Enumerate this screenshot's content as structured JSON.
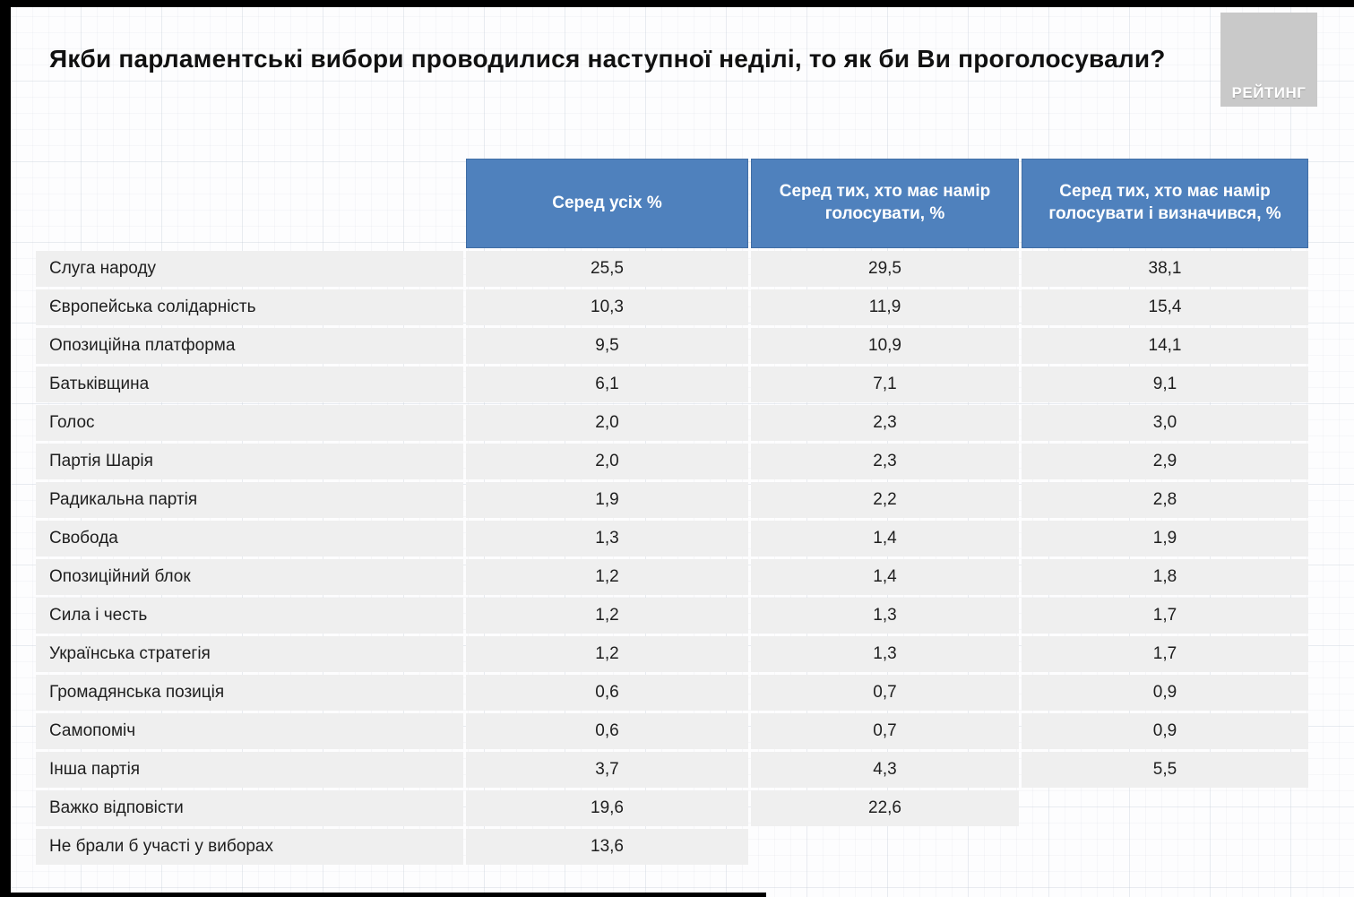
{
  "page": {
    "title": "Якби парламентські вибори проводилися наступної неділі, то як би Ви проголосували?",
    "logo_text": "РЕЙТИНГ"
  },
  "colors": {
    "header_blue": "#4f81bd",
    "row_gray": "#efefef",
    "logo_gray": "#c9c9c9",
    "frame_black": "#000000"
  },
  "table": {
    "columns": [
      "Серед усіх %",
      "Серед тих, хто має намір голосувати, %",
      "Серед тих, хто має намір голосувати і визначився, %"
    ],
    "rows": [
      {
        "label": "Слуга народу",
        "values": [
          "25,5",
          "29,5",
          "38,1"
        ]
      },
      {
        "label": "Європейська солідарність",
        "values": [
          "10,3",
          "11,9",
          "15,4"
        ]
      },
      {
        "label": "Опозиційна платформа",
        "values": [
          "9,5",
          "10,9",
          "14,1"
        ]
      },
      {
        "label": "Батьківщина",
        "values": [
          "6,1",
          "7,1",
          "9,1"
        ]
      },
      {
        "label": "Голос",
        "values": [
          "2,0",
          "2,3",
          "3,0"
        ]
      },
      {
        "label": "Партія Шарія",
        "values": [
          "2,0",
          "2,3",
          "2,9"
        ]
      },
      {
        "label": "Радикальна партія",
        "values": [
          "1,9",
          "2,2",
          "2,8"
        ]
      },
      {
        "label": "Свобода",
        "values": [
          "1,3",
          "1,4",
          "1,9"
        ]
      },
      {
        "label": "Опозиційний блок",
        "values": [
          "1,2",
          "1,4",
          "1,8"
        ]
      },
      {
        "label": "Сила і честь",
        "values": [
          "1,2",
          "1,3",
          "1,7"
        ]
      },
      {
        "label": "Українська стратегія",
        "values": [
          "1,2",
          "1,3",
          "1,7"
        ]
      },
      {
        "label": "Громадянська позиція",
        "values": [
          "0,6",
          "0,7",
          "0,9"
        ]
      },
      {
        "label": "Самопоміч",
        "values": [
          "0,6",
          "0,7",
          "0,9"
        ]
      },
      {
        "label": "Інша партія",
        "values": [
          "3,7",
          "4,3",
          "5,5"
        ]
      },
      {
        "label": "Важко відповісти",
        "values": [
          "19,6",
          "22,6",
          null
        ]
      },
      {
        "label": "Не брали б участі у виборах",
        "values": [
          "13,6",
          null,
          null
        ]
      }
    ]
  },
  "chart_data": {
    "type": "table",
    "title": "Якби парламентські вибори проводилися наступної неділі, то як би Ви проголосували?",
    "categories": [
      "Слуга народу",
      "Європейська солідарність",
      "Опозиційна платформа",
      "Батьківщина",
      "Голос",
      "Партія Шарія",
      "Радикальна партія",
      "Свобода",
      "Опозиційний блок",
      "Сила і честь",
      "Українська стратегія",
      "Громадянська позиція",
      "Самопоміч",
      "Інша партія",
      "Важко відповісти",
      "Не брали б участі у виборах"
    ],
    "series": [
      {
        "name": "Серед усіх %",
        "values": [
          25.5,
          10.3,
          9.5,
          6.1,
          2.0,
          2.0,
          1.9,
          1.3,
          1.2,
          1.2,
          1.2,
          0.6,
          0.6,
          3.7,
          19.6,
          13.6
        ]
      },
      {
        "name": "Серед тих, хто має намір голосувати, %",
        "values": [
          29.5,
          11.9,
          10.9,
          7.1,
          2.3,
          2.3,
          2.2,
          1.4,
          1.4,
          1.3,
          1.3,
          0.7,
          0.7,
          4.3,
          22.6,
          null
        ]
      },
      {
        "name": "Серед тих, хто має намір голосувати і визначився, %",
        "values": [
          38.1,
          15.4,
          14.1,
          9.1,
          3.0,
          2.9,
          2.8,
          1.9,
          1.8,
          1.7,
          1.7,
          0.9,
          0.9,
          5.5,
          null,
          null
        ]
      }
    ]
  }
}
